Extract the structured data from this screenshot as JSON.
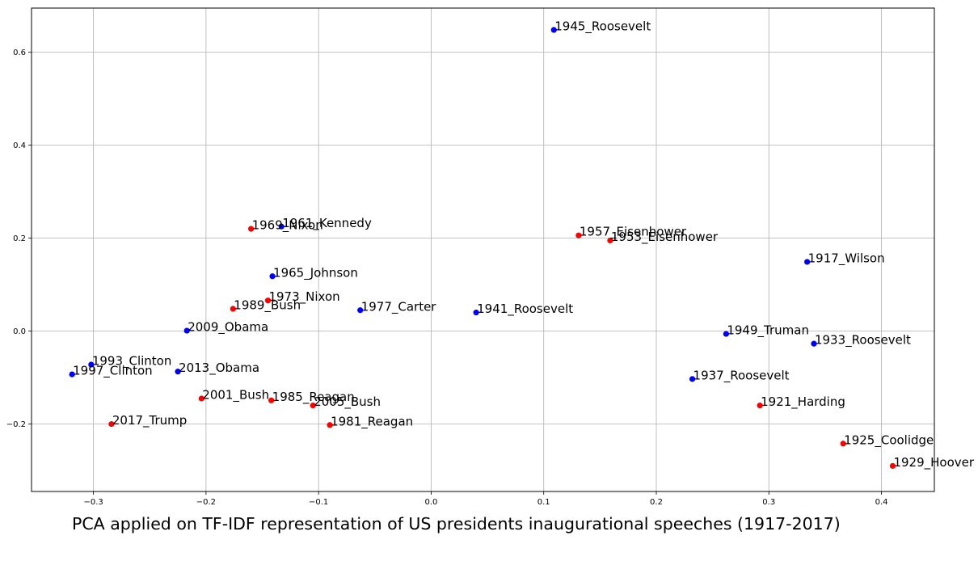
{
  "caption": "PCA applied on TF-IDF representation of US presidents inaugurational speeches (1917-2017)",
  "chart_data": {
    "type": "scatter",
    "title": "",
    "xlabel": "",
    "ylabel": "",
    "xlim": [
      -0.355,
      0.447
    ],
    "ylim": [
      -0.345,
      0.695
    ],
    "grid": true,
    "x_ticks": [
      -0.3,
      -0.2,
      -0.1,
      0.0,
      0.1,
      0.2,
      0.3,
      0.4
    ],
    "x_tick_labels": [
      "−0.3",
      "−0.2",
      "−0.1",
      "0.0",
      "0.1",
      "0.2",
      "0.3",
      "0.4"
    ],
    "y_ticks": [
      -0.2,
      0.0,
      0.2,
      0.4,
      0.6
    ],
    "y_tick_labels": [
      "−0.2",
      "0.0",
      "0.2",
      "0.4",
      "0.6"
    ],
    "colors": {
      "blue": "#0000ff",
      "red": "#ff0000"
    },
    "points": [
      {
        "label": "1945_Roosevelt",
        "x": 0.109,
        "y": 0.648,
        "color": "blue"
      },
      {
        "label": "1961_Kennedy",
        "x": -0.133,
        "y": 0.225,
        "color": "blue"
      },
      {
        "label": "1969_Nixon",
        "x": -0.16,
        "y": 0.22,
        "color": "red"
      },
      {
        "label": "1957_Eisenhower",
        "x": 0.131,
        "y": 0.206,
        "color": "red"
      },
      {
        "label": "1953_Eisenhower",
        "x": 0.159,
        "y": 0.195,
        "color": "red"
      },
      {
        "label": "1917_Wilson",
        "x": 0.334,
        "y": 0.149,
        "color": "blue"
      },
      {
        "label": "1965_Johnson",
        "x": -0.141,
        "y": 0.118,
        "color": "blue"
      },
      {
        "label": "1973_Nixon",
        "x": -0.145,
        "y": 0.066,
        "color": "red"
      },
      {
        "label": "1989_Bush",
        "x": -0.176,
        "y": 0.048,
        "color": "red"
      },
      {
        "label": "1977_Carter",
        "x": -0.063,
        "y": 0.045,
        "color": "blue"
      },
      {
        "label": "1941_Roosevelt",
        "x": 0.04,
        "y": 0.04,
        "color": "blue"
      },
      {
        "label": "2009_Obama",
        "x": -0.217,
        "y": 0.001,
        "color": "blue"
      },
      {
        "label": "1949_Truman",
        "x": 0.262,
        "y": -0.006,
        "color": "blue"
      },
      {
        "label": "1933_Roosevelt",
        "x": 0.34,
        "y": -0.027,
        "color": "blue"
      },
      {
        "label": "1993_Clinton",
        "x": -0.302,
        "y": -0.072,
        "color": "blue"
      },
      {
        "label": "2013_Obama",
        "x": -0.225,
        "y": -0.087,
        "color": "blue"
      },
      {
        "label": "1997_Clinton",
        "x": -0.319,
        "y": -0.093,
        "color": "blue"
      },
      {
        "label": "1937_Roosevelt",
        "x": 0.232,
        "y": -0.103,
        "color": "blue"
      },
      {
        "label": "2001_Bush",
        "x": -0.204,
        "y": -0.145,
        "color": "red"
      },
      {
        "label": "1985_Reagan",
        "x": -0.142,
        "y": -0.149,
        "color": "red"
      },
      {
        "label": "2005_Bush",
        "x": -0.105,
        "y": -0.16,
        "color": "red"
      },
      {
        "label": "1921_Harding",
        "x": 0.292,
        "y": -0.16,
        "color": "red"
      },
      {
        "label": "2017_Trump",
        "x": -0.284,
        "y": -0.2,
        "color": "red"
      },
      {
        "label": "1981_Reagan",
        "x": -0.09,
        "y": -0.202,
        "color": "red"
      },
      {
        "label": "1925_Coolidge",
        "x": 0.366,
        "y": -0.242,
        "color": "red"
      },
      {
        "label": "1929_Hoover",
        "x": 0.41,
        "y": -0.29,
        "color": "red"
      }
    ]
  }
}
